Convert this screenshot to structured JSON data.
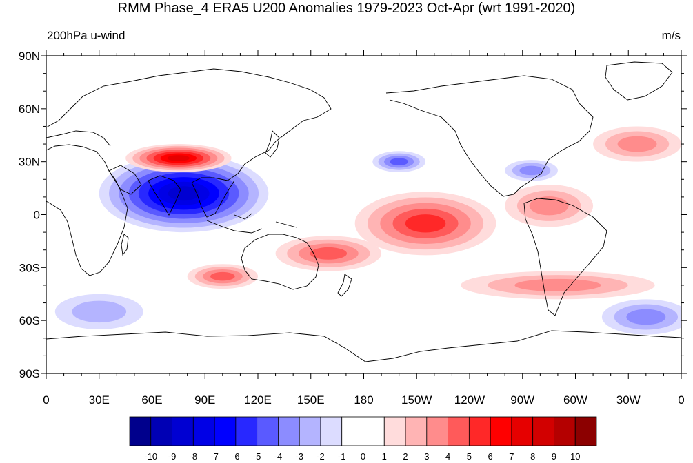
{
  "title": "RMM Phase_4 ERA5 U200 Anomalies 1979-2023 Oct-Apr (wrt 1991-2020)",
  "left_label": "200hPa u-wind",
  "right_label": "m/s",
  "y_ticks": [
    "90N",
    "60N",
    "30N",
    "0",
    "30S",
    "60S",
    "90S"
  ],
  "x_ticks": [
    "0",
    "30E",
    "60E",
    "90E",
    "120E",
    "150E",
    "180",
    "150W",
    "120W",
    "90W",
    "60W",
    "30W",
    "0"
  ],
  "colorbar": {
    "labels": [
      "-10",
      "-9",
      "-8",
      "-7",
      "-6",
      "-5",
      "-4",
      "-3",
      "-2",
      "-1",
      "0",
      "1",
      "2",
      "3",
      "4",
      "5",
      "6",
      "7",
      "8",
      "9",
      "10"
    ],
    "colors": [
      "#00008c",
      "#0000b4",
      "#0000d2",
      "#0000e6",
      "#0000ff",
      "#2828ff",
      "#5a5aff",
      "#8c8cff",
      "#b4b4ff",
      "#dcdcff",
      "#ffffff",
      "#ffffff",
      "#ffdcdc",
      "#ffb4b4",
      "#ff8c8c",
      "#ff5a5a",
      "#ff2828",
      "#ff0000",
      "#e60000",
      "#d20000",
      "#b40000",
      "#8c0000"
    ]
  },
  "chart_data": {
    "type": "heatmap",
    "title": "RMM Phase_4 ERA5 U200 Anomalies 1979-2023 Oct-Apr (wrt 1991-2020)",
    "variable": "200hPa u-wind",
    "units": "m/s",
    "xlim": [
      0,
      360
    ],
    "ylim": [
      -90,
      90
    ],
    "levels": [
      -10,
      -9,
      -8,
      -7,
      -6,
      -5,
      -4,
      -3,
      -2,
      -1,
      0,
      1,
      2,
      3,
      4,
      5,
      6,
      7,
      8,
      9,
      10
    ],
    "features": [
      {
        "lon": 78,
        "lat": 12,
        "rx": 48,
        "ry": 22,
        "value": -8
      },
      {
        "lon": 75,
        "lat": 32,
        "rx": 30,
        "ry": 8,
        "value": 7
      },
      {
        "lon": 215,
        "lat": -5,
        "rx": 40,
        "ry": 18,
        "value": 5
      },
      {
        "lon": 160,
        "lat": -22,
        "rx": 30,
        "ry": 10,
        "value": 4
      },
      {
        "lon": 285,
        "lat": 5,
        "rx": 25,
        "ry": 12,
        "value": 3
      },
      {
        "lon": 335,
        "lat": 40,
        "rx": 25,
        "ry": 10,
        "value": 3
      },
      {
        "lon": 290,
        "lat": -40,
        "rx": 55,
        "ry": 8,
        "value": 3
      },
      {
        "lon": 100,
        "lat": -35,
        "rx": 20,
        "ry": 7,
        "value": 4
      },
      {
        "lon": 30,
        "lat": -55,
        "rx": 25,
        "ry": 10,
        "value": -2
      },
      {
        "lon": 340,
        "lat": -58,
        "rx": 25,
        "ry": 10,
        "value": -3
      },
      {
        "lon": 275,
        "lat": 25,
        "rx": 15,
        "ry": 6,
        "value": -3
      },
      {
        "lon": 200,
        "lat": 30,
        "rx": 15,
        "ry": 6,
        "value": -4
      }
    ]
  }
}
